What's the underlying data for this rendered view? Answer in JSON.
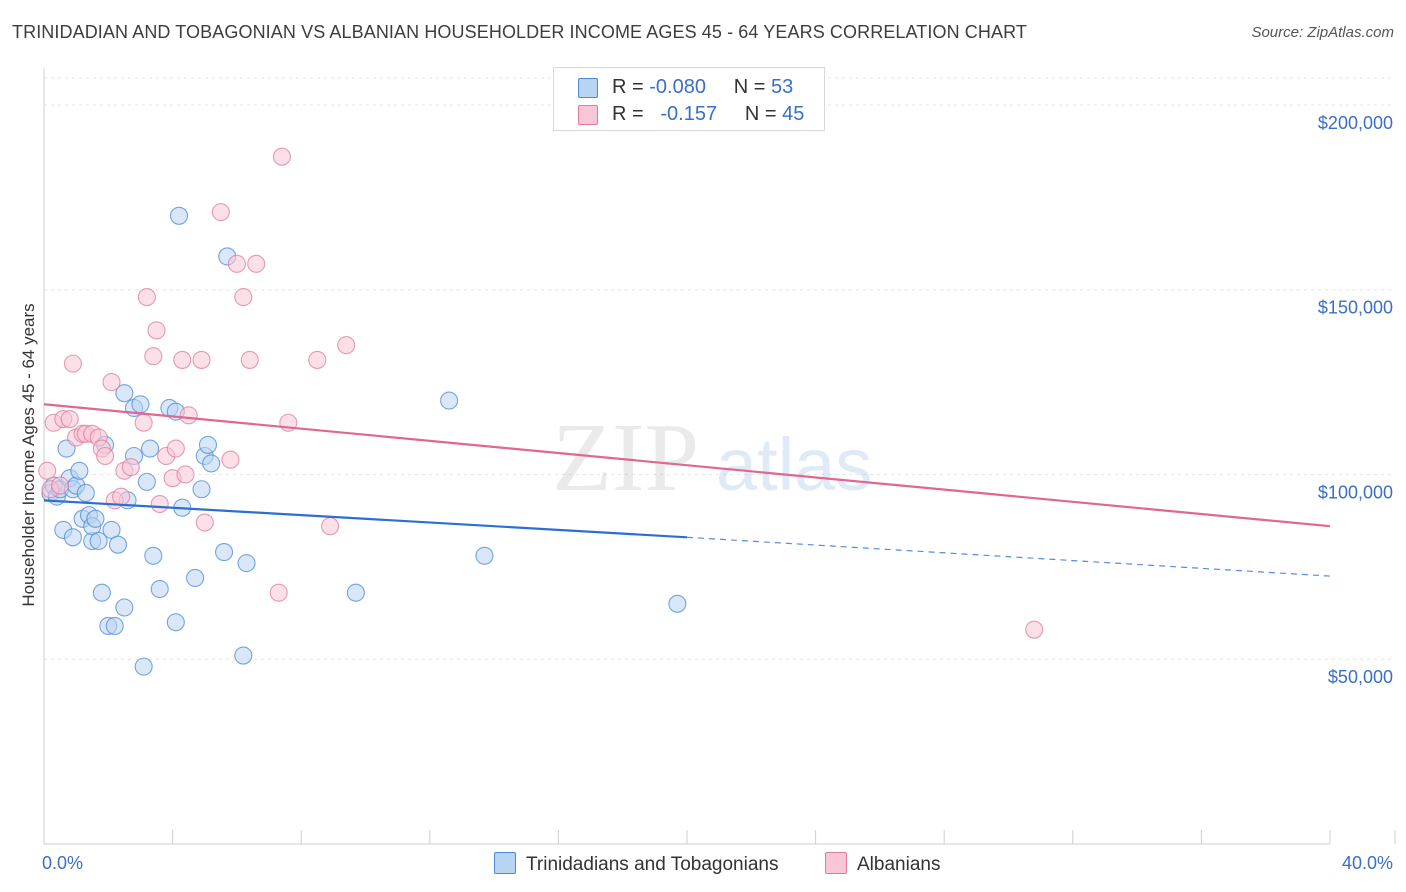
{
  "title": "TRINIDADIAN AND TOBAGONIAN VS ALBANIAN HOUSEHOLDER INCOME AGES 45 - 64 YEARS CORRELATION CHART",
  "source": "Source: ZipAtlas.com",
  "watermark": {
    "zip": "ZIP",
    "atlas": "atlas"
  },
  "legend": {
    "r_label": "R =",
    "n_label": "N =",
    "series": [
      {
        "name": "Trinidadians and Tobagonians",
        "r": "-0.080",
        "n": "53",
        "color": "#4a8ad8",
        "fill": "#b9d3f3"
      },
      {
        "name": "Albanians",
        "r": "-0.157",
        "n": "45",
        "color": "#e07a9c",
        "fill": "#f8c6d6"
      }
    ]
  },
  "chart_data": {
    "type": "scatter",
    "title": "TRINIDADIAN AND TOBAGONIAN VS ALBANIAN HOUSEHOLDER INCOME AGES 45 - 64 YEARS CORRELATION CHART",
    "xlabel": "",
    "ylabel": "Householder Income Ages 45 - 64 years",
    "xlim": [
      0,
      40
    ],
    "ylim": [
      0,
      210000
    ],
    "x_tick_labels": [
      "0.0%",
      "40.0%"
    ],
    "y_ticks": [
      50000,
      100000,
      150000,
      200000
    ],
    "y_tick_labels": [
      "$50,000",
      "$100,000",
      "$150,000",
      "$200,000"
    ],
    "legend_position": "bottom-center",
    "series": [
      {
        "name": "Trinidadians and Tobagonians",
        "color": "#4a8ad8",
        "points": [
          [
            0.2,
            95000
          ],
          [
            0.3,
            97000
          ],
          [
            0.4,
            94000
          ],
          [
            0.5,
            96000
          ],
          [
            0.6,
            85000
          ],
          [
            0.7,
            107000
          ],
          [
            0.8,
            99000
          ],
          [
            0.9,
            96000
          ],
          [
            0.9,
            83000
          ],
          [
            1.0,
            97000
          ],
          [
            1.1,
            101000
          ],
          [
            1.2,
            88000
          ],
          [
            1.3,
            95000
          ],
          [
            1.4,
            89000
          ],
          [
            1.5,
            82000
          ],
          [
            1.5,
            86000
          ],
          [
            1.6,
            88000
          ],
          [
            1.7,
            82000
          ],
          [
            1.8,
            68000
          ],
          [
            1.9,
            108000
          ],
          [
            2.0,
            59000
          ],
          [
            2.1,
            85000
          ],
          [
            2.2,
            59000
          ],
          [
            2.3,
            81000
          ],
          [
            2.5,
            64000
          ],
          [
            2.6,
            93000
          ],
          [
            2.5,
            122000
          ],
          [
            2.8,
            118000
          ],
          [
            2.8,
            105000
          ],
          [
            3.0,
            119000
          ],
          [
            3.1,
            48000
          ],
          [
            3.2,
            98000
          ],
          [
            3.3,
            107000
          ],
          [
            3.4,
            78000
          ],
          [
            3.6,
            69000
          ],
          [
            3.9,
            118000
          ],
          [
            4.1,
            60000
          ],
          [
            4.1,
            117000
          ],
          [
            4.2,
            170000
          ],
          [
            4.3,
            91000
          ],
          [
            4.7,
            72000
          ],
          [
            4.9,
            96000
          ],
          [
            5.0,
            105000
          ],
          [
            5.1,
            108000
          ],
          [
            5.2,
            103000
          ],
          [
            5.6,
            79000
          ],
          [
            5.7,
            159000
          ],
          [
            6.2,
            51000
          ],
          [
            6.3,
            76000
          ],
          [
            9.7,
            68000
          ],
          [
            12.6,
            120000
          ],
          [
            13.7,
            78000
          ],
          [
            19.7,
            65000
          ]
        ]
      },
      {
        "name": "Albanians",
        "color": "#e07a9c",
        "points": [
          [
            0.2,
            96000
          ],
          [
            0.3,
            114000
          ],
          [
            0.5,
            97000
          ],
          [
            0.6,
            115000
          ],
          [
            0.8,
            115000
          ],
          [
            0.9,
            130000
          ],
          [
            1.0,
            110000
          ],
          [
            1.2,
            111000
          ],
          [
            1.3,
            111000
          ],
          [
            1.5,
            111000
          ],
          [
            1.7,
            110000
          ],
          [
            1.8,
            107000
          ],
          [
            1.9,
            105000
          ],
          [
            2.1,
            125000
          ],
          [
            2.2,
            93000
          ],
          [
            2.4,
            94000
          ],
          [
            2.5,
            101000
          ],
          [
            2.7,
            102000
          ],
          [
            3.1,
            114000
          ],
          [
            3.2,
            148000
          ],
          [
            3.4,
            132000
          ],
          [
            3.5,
            139000
          ],
          [
            3.6,
            92000
          ],
          [
            3.8,
            105000
          ],
          [
            4.0,
            99000
          ],
          [
            4.1,
            107000
          ],
          [
            4.3,
            131000
          ],
          [
            4.4,
            100000
          ],
          [
            4.5,
            116000
          ],
          [
            4.9,
            131000
          ],
          [
            5.0,
            87000
          ],
          [
            5.5,
            171000
          ],
          [
            5.8,
            104000
          ],
          [
            6.0,
            157000
          ],
          [
            6.2,
            148000
          ],
          [
            6.4,
            131000
          ],
          [
            6.6,
            157000
          ],
          [
            7.3,
            68000
          ],
          [
            7.4,
            186000
          ],
          [
            7.6,
            114000
          ],
          [
            8.5,
            131000
          ],
          [
            8.9,
            86000
          ],
          [
            9.4,
            135000
          ],
          [
            30.8,
            58000
          ],
          [
            0.1,
            101000
          ]
        ]
      }
    ],
    "trend_lines": [
      {
        "series": "Trinidadians and Tobagonians",
        "solid": [
          [
            0,
            93000
          ],
          [
            20,
            83000
          ]
        ],
        "dashed": [
          [
            20,
            83000
          ],
          [
            40,
            72500
          ]
        ]
      },
      {
        "series": "Albanians",
        "solid": [
          [
            0,
            119000
          ],
          [
            40,
            86000
          ]
        ]
      }
    ]
  }
}
